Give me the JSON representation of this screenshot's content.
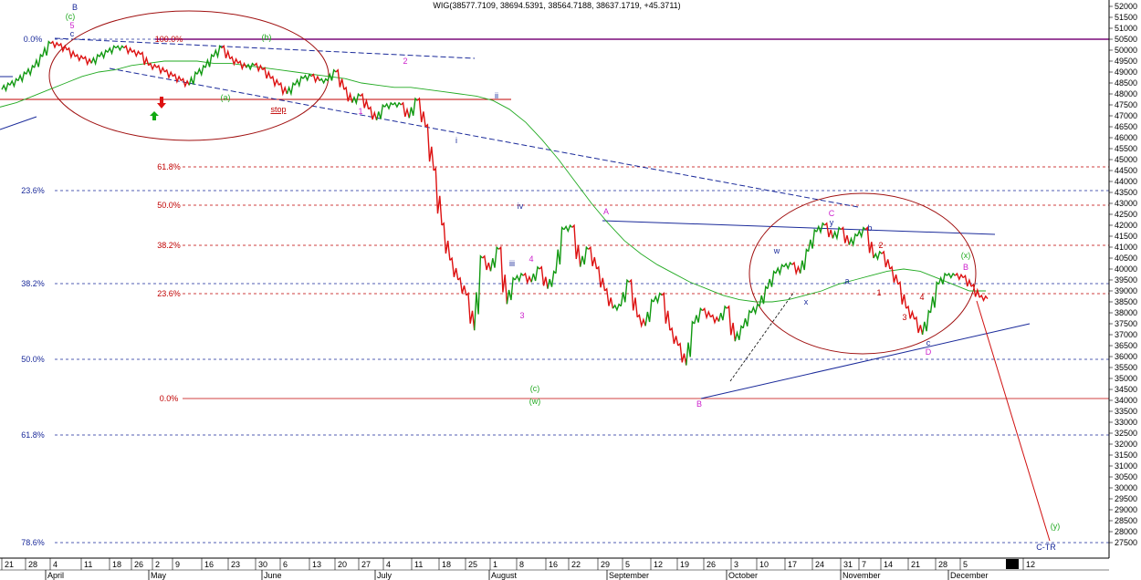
{
  "chart_data": {
    "type": "line",
    "title": "WIG(38577.7109, 38694.5391, 38564.7188, 38637.1719, +45.3711)",
    "ylim": [
      27400,
      52250
    ],
    "yticks": [
      27500,
      28000,
      28500,
      29000,
      29500,
      30000,
      30500,
      31000,
      31500,
      32000,
      32500,
      33000,
      33500,
      34000,
      34500,
      35000,
      35500,
      36000,
      36500,
      37000,
      37500,
      38000,
      38500,
      39000,
      39500,
      40000,
      40500,
      41000,
      41500,
      42000,
      42500,
      43000,
      43500,
      44000,
      44500,
      45000,
      45500,
      46000,
      46500,
      47000,
      47500,
      48000,
      48500,
      49000,
      49500,
      50000,
      50500,
      51000,
      51500,
      52000
    ],
    "x_day_labels": [
      "21",
      "28",
      "4",
      "11",
      "18",
      "26",
      "2",
      "9",
      "16",
      "23",
      "30",
      "6",
      "13",
      "20",
      "27",
      "4",
      "11",
      "18",
      "25",
      "1",
      "8",
      "16",
      "22",
      "29",
      "5",
      "12",
      "19",
      "26",
      "3",
      "10",
      "17",
      "24",
      "31",
      "7",
      "14",
      "21",
      "28",
      "5",
      "12"
    ],
    "x_month_labels": [
      "April",
      "May",
      "June",
      "July",
      "August",
      "September",
      "October",
      "November",
      "December"
    ],
    "series": [
      {
        "name": "WIG",
        "values": [
          48200,
          48400,
          48600,
          48900,
          49200,
          49700,
          50300,
          50200,
          50000,
          49700,
          49600,
          49400,
          49700,
          49900,
          50100,
          50100,
          49900,
          49800,
          49300,
          49200,
          49000,
          48800,
          48600,
          48400,
          48900,
          49200,
          49700,
          50100,
          49600,
          49400,
          49200,
          49300,
          49100,
          48700,
          48400,
          48000,
          48400,
          48700,
          48800,
          48600,
          48600,
          49000,
          48200,
          47600,
          47900,
          47300,
          46800,
          47400,
          47500,
          47500,
          46900,
          47700,
          46500,
          44500,
          42000,
          40400,
          39500,
          38800,
          37200,
          40500,
          39900,
          40900,
          38400,
          39500,
          39700,
          39400,
          40000,
          39100,
          39800,
          41800,
          41900,
          40100,
          40900,
          40000,
          39000,
          38200,
          38300,
          39400,
          37800,
          37400,
          38500,
          38800,
          37200,
          36500,
          35600,
          37500,
          38100,
          37800,
          37600,
          38200,
          36700,
          37300,
          38000,
          38300,
          39100,
          39800,
          40100,
          40200,
          39800,
          40800,
          41700,
          42000,
          41400,
          41800,
          41100,
          41500,
          41800,
          40500,
          40700,
          40000,
          39300,
          38200,
          37700,
          37000,
          38000,
          39300,
          39700,
          39700,
          39600,
          39200,
          38700,
          38640
        ]
      },
      {
        "name": "",
        "values": [
          47400,
          47600,
          47900,
          48200,
          48500,
          48800,
          49000,
          49100,
          49300,
          49400,
          49500,
          49500,
          49500,
          49400,
          49400,
          49300,
          49200,
          49100,
          49000,
          48900,
          48800,
          48700,
          48500,
          48400,
          48300,
          48300,
          48200,
          48100,
          48000,
          47900,
          47700,
          47300,
          46700,
          45900,
          45000,
          44000,
          43000,
          42100,
          41300,
          40700,
          40200,
          39800,
          39400,
          39100,
          38800,
          38600,
          38500,
          38500,
          38600,
          38800,
          39000,
          39300,
          39500,
          39700,
          39900,
          40000,
          39900,
          39600,
          39300,
          39000,
          39000
        ]
      }
    ],
    "fib_blue": [
      "0.0%",
      "23.6%",
      "38.2%",
      "50.0%",
      "61.8%",
      "78.6%"
    ],
    "fib_red": [
      "100.0%",
      "61.8%",
      "50.0%",
      "38.2%",
      "23.6%",
      "0.0%"
    ],
    "wave_labels": [
      "B",
      "(c)",
      "5",
      "c",
      "(b)",
      "(a)",
      "2",
      "1",
      "ii",
      "i",
      "iv",
      "iii",
      "4",
      "3",
      "(c)",
      "(w)",
      "A",
      "B",
      "C",
      "y",
      "b",
      "a",
      "w",
      "x",
      "2",
      "1",
      "3",
      "4",
      "(x)",
      "B",
      "c",
      "D",
      "(y)",
      "C-TR"
    ],
    "stop_label": "stop"
  }
}
